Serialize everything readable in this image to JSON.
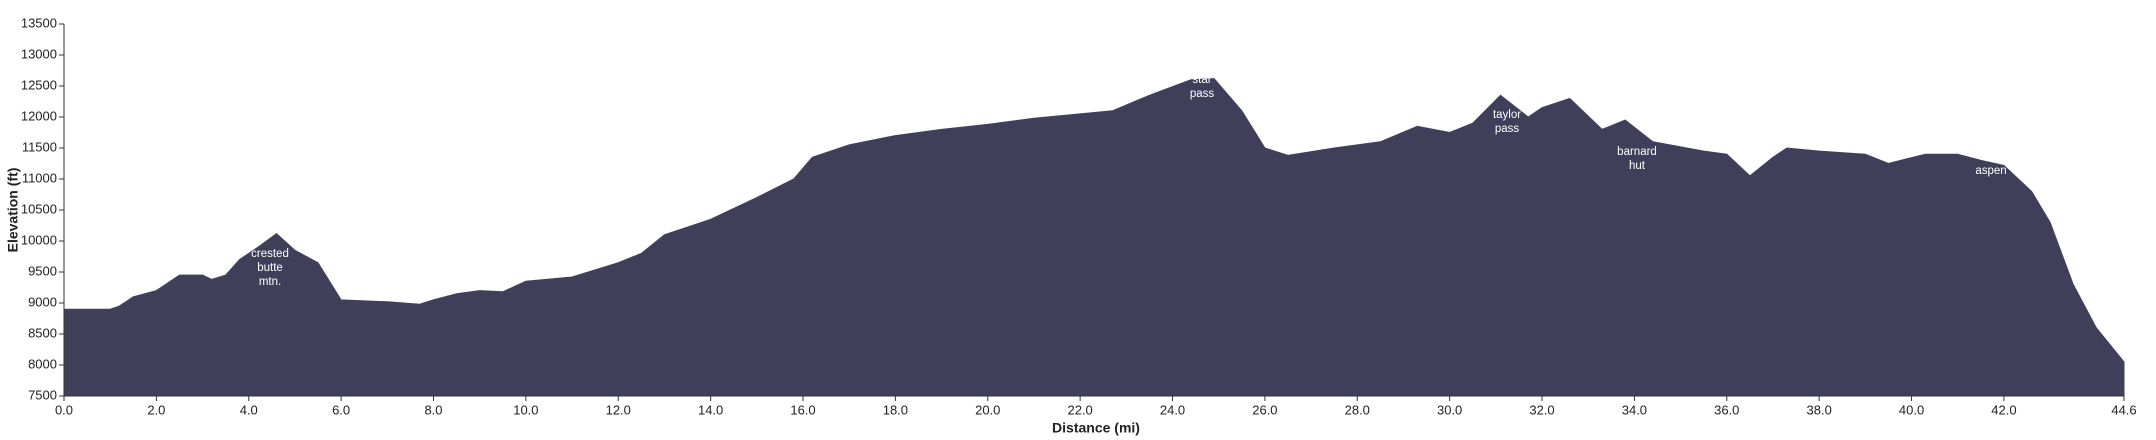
{
  "chart_data": {
    "type": "area",
    "x_label": "Distance   (mi)",
    "y_label": "Elevation (ft)",
    "color": "#403f5a",
    "x": [
      0.0,
      1.0,
      1.2,
      1.5,
      2.0,
      2.5,
      3.0,
      3.2,
      3.5,
      3.8,
      4.2,
      4.6,
      5.0,
      5.5,
      6.0,
      7.0,
      7.7,
      8.0,
      8.5,
      9.0,
      9.5,
      10.0,
      11.0,
      12.0,
      12.5,
      13.0,
      14.0,
      15.0,
      15.8,
      16.2,
      17.0,
      18.0,
      19.0,
      20.0,
      21.0,
      22.0,
      22.7,
      23.5,
      24.4,
      24.9,
      25.5,
      26.0,
      26.5,
      27.5,
      28.5,
      29.3,
      30.0,
      30.5,
      31.1,
      31.7,
      32.0,
      32.6,
      33.3,
      33.8,
      34.4,
      35.5,
      36.0,
      36.5,
      37.0,
      37.3,
      38.0,
      39.0,
      39.5,
      40.3,
      41.0,
      41.5,
      42.0,
      42.6,
      43.0,
      43.5,
      44.0,
      44.6
    ],
    "values": [
      8900,
      8900,
      8950,
      9100,
      9200,
      9450,
      9450,
      9380,
      9450,
      9700,
      9900,
      10120,
      9850,
      9650,
      9050,
      9020,
      8980,
      9050,
      9150,
      9200,
      9180,
      9350,
      9420,
      9650,
      9800,
      10100,
      10350,
      10700,
      11000,
      11350,
      11550,
      11700,
      11800,
      11880,
      11980,
      12050,
      12100,
      12350,
      12600,
      12620,
      12100,
      11500,
      11380,
      11500,
      11600,
      11850,
      11750,
      11900,
      12350,
      12000,
      12150,
      12300,
      11800,
      11950,
      11600,
      11450,
      11400,
      11050,
      11350,
      11500,
      11450,
      11400,
      11250,
      11400,
      11400,
      11300,
      11220,
      10800,
      10300,
      9300,
      8600,
      8050
    ],
    "xlim": [
      0,
      44.6
    ],
    "ylim": [
      7500,
      13500
    ],
    "xticks": [
      {
        "value": 0,
        "label": "0.0"
      },
      {
        "value": 2,
        "label": "2.0"
      },
      {
        "value": 4,
        "label": "4.0"
      },
      {
        "value": 6,
        "label": "6.0"
      },
      {
        "value": 8,
        "label": "8.0"
      },
      {
        "value": 10,
        "label": "10.0"
      },
      {
        "value": 12,
        "label": "12.0"
      },
      {
        "value": 14,
        "label": "14.0"
      },
      {
        "value": 16,
        "label": "16.0"
      },
      {
        "value": 18,
        "label": "18.0"
      },
      {
        "value": 20,
        "label": "20.0"
      },
      {
        "value": 22,
        "label": "22.0"
      },
      {
        "value": 24,
        "label": "24.0"
      },
      {
        "value": 26,
        "label": "26.0"
      },
      {
        "value": 28,
        "label": "28.0"
      },
      {
        "value": 30,
        "label": "30.0"
      },
      {
        "value": 32,
        "label": "32.0"
      },
      {
        "value": 34,
        "label": "34.0"
      },
      {
        "value": 36,
        "label": "36.0"
      },
      {
        "value": 38,
        "label": "38.0"
      },
      {
        "value": 40,
        "label": "40.0"
      },
      {
        "value": 42,
        "label": "42.0"
      },
      44.6
    ],
    "yticks": [
      7500,
      8000,
      8500,
      9000,
      9500,
      10000,
      10500,
      11000,
      11500,
      12000,
      12500,
      13000,
      13500
    ],
    "annotations": [
      [
        "crested",
        "butte",
        "mtn."
      ],
      [
        "star",
        "pass"
      ],
      [
        "taylor",
        "pass"
      ],
      [
        "barnard",
        "hut"
      ],
      [
        "aspen"
      ]
    ]
  }
}
